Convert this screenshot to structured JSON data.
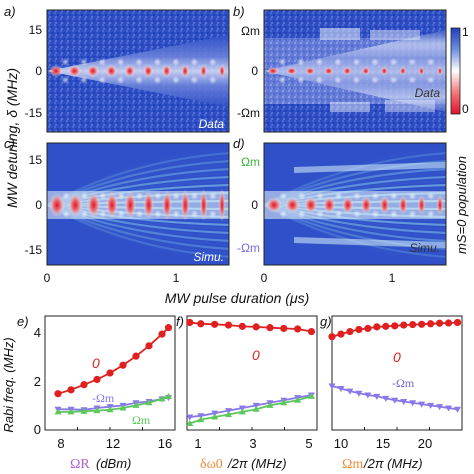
{
  "figure": {
    "y_axis_top": "MW detuning, δ (MHz)",
    "x_axis_top": "MW pulse duration (μs)",
    "colorbar_label": "mS=0 population",
    "colorbar_ticks": [
      "1",
      "0"
    ],
    "y_axis_bottom": "Rabi freq. (MHz)"
  },
  "panels": {
    "a": {
      "label": "a)",
      "tag": "Data",
      "yticks": [
        "15",
        "0",
        "-15"
      ]
    },
    "b": {
      "label": "b)",
      "tag": "Data",
      "top_mark": "Ωm",
      "zero_mark": "0",
      "bottom_mark": "-Ωm"
    },
    "c": {
      "label": "c)",
      "tag": "Simu.",
      "yticks": [
        "15",
        "0",
        "-15"
      ],
      "xticks": [
        "0",
        "1"
      ]
    },
    "d": {
      "label": "d)",
      "tag": "Simu.",
      "top_mark": "Ωm",
      "zero_mark": "0",
      "bottom_mark": "-Ωm",
      "xticks": [
        "0",
        "1"
      ]
    },
    "e": {
      "label": "e)",
      "xticks": [
        "8",
        "12",
        "16"
      ],
      "yticks": [
        "4",
        "2",
        "0"
      ],
      "xlabel_sym": "ΩR",
      "xlabel_unit": "(dBm)",
      "curve_labels": {
        "zero": "0",
        "minus": "-Ωm",
        "plus": "Ωm"
      }
    },
    "f": {
      "label": "f)",
      "xticks": [
        "1",
        "3",
        "5"
      ],
      "xlabel_sym": "δω0",
      "xlabel_unit": "/2π (MHz)",
      "curve_labels": {
        "zero": "0",
        "minus": "-Ωm",
        "plus": "Ωm"
      }
    },
    "g": {
      "label": "g)",
      "xticks": [
        "10",
        "15",
        "20"
      ],
      "xlabel_sym": "Ωm",
      "xlabel_unit": "/2π (MHz)",
      "curve_labels": {
        "zero": "0",
        "minus": "-Ωm"
      }
    }
  },
  "colors": {
    "zero_curve": "#e02020",
    "minus_curve": "#8878e8",
    "plus_curve": "#5cc85c",
    "map_blue": "#1f3fb8",
    "map_red": "#e3102a",
    "omega_m_green": "#3cb43c",
    "omega_m_violet": "#7a68e0",
    "xlabel_violet": "#b060d0",
    "xlabel_orange": "#f08a3a"
  },
  "chart_data": [
    {
      "panel": "e",
      "type": "scatter",
      "x": [
        8.5,
        9.5,
        10.5,
        11.5,
        12.5,
        13.5,
        14.5,
        15.5,
        16.5,
        17
      ],
      "series": [
        {
          "name": "0",
          "values": [
            1.4,
            1.55,
            1.75,
            1.95,
            2.2,
            2.5,
            2.85,
            3.25,
            3.7,
            3.95
          ]
        },
        {
          "name": "-Ωm",
          "values": [
            0.8,
            0.8,
            0.78,
            0.85,
            0.9,
            0.95,
            1.05,
            1.1,
            1.2,
            1.25
          ]
        },
        {
          "name": "Ωm",
          "values": [
            0.7,
            0.7,
            0.72,
            0.75,
            0.78,
            0.85,
            0.95,
            1.05,
            1.2,
            1.3
          ]
        }
      ],
      "xlim": [
        7.5,
        17.5
      ],
      "ylim": [
        0,
        4.4
      ]
    },
    {
      "panel": "f",
      "type": "scatter",
      "x": [
        0.6,
        1.0,
        1.5,
        2.0,
        2.5,
        3.0,
        3.5,
        4.0,
        4.5,
        5.0
      ],
      "series": [
        {
          "name": "0",
          "values": [
            4.15,
            4.1,
            4.08,
            4.05,
            4.0,
            3.98,
            3.95,
            3.92,
            3.9,
            3.8
          ]
        },
        {
          "name": "-Ωm",
          "values": [
            0.5,
            0.55,
            0.65,
            0.75,
            0.85,
            0.95,
            1.05,
            1.15,
            1.25,
            1.35
          ]
        },
        {
          "name": "Ωm",
          "values": [
            0.25,
            0.4,
            0.5,
            0.6,
            0.7,
            0.8,
            0.95,
            1.05,
            1.15,
            1.3
          ]
        }
      ],
      "xlim": [
        0.5,
        5.2
      ],
      "ylim": [
        0,
        4.4
      ]
    },
    {
      "panel": "g",
      "type": "scatter",
      "x": [
        10,
        11,
        12,
        13,
        14,
        15,
        16,
        17,
        18,
        19,
        20,
        21,
        22,
        23,
        24
      ],
      "series": [
        {
          "name": "0",
          "values": [
            3.6,
            3.7,
            3.8,
            3.88,
            3.92,
            3.98,
            4.0,
            4.02,
            4.05,
            4.07,
            4.08,
            4.1,
            4.12,
            4.13,
            4.15
          ]
        },
        {
          "name": "-Ωm",
          "values": [
            1.7,
            1.6,
            1.5,
            1.42,
            1.35,
            1.3,
            1.22,
            1.15,
            1.1,
            1.05,
            1.0,
            0.95,
            0.9,
            0.85,
            0.8
          ]
        }
      ],
      "xlim": [
        10,
        24.5
      ],
      "ylim": [
        0,
        4.4
      ]
    }
  ]
}
